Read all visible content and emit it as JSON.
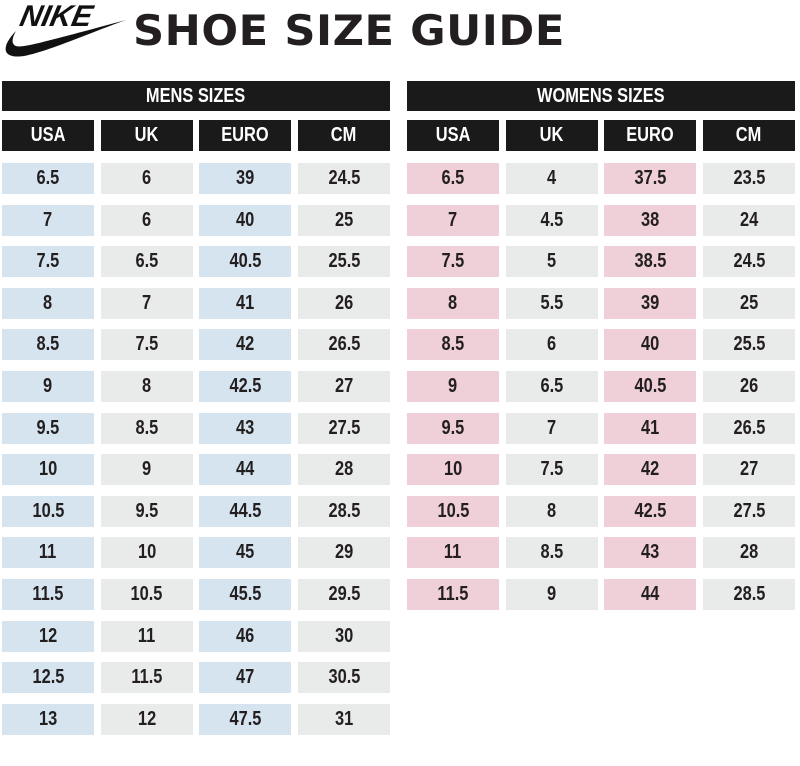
{
  "header": {
    "brand": "NIKE",
    "logo_icon": "nike-swoosh-logo",
    "title": "SHOE SIZE GUIDE"
  },
  "colors": {
    "header_bg": "#1a1a1a",
    "mens_accent": "#d5e4ef",
    "womens_accent": "#efcfd8",
    "plain_cell": "#e9eaea",
    "text": "#231f20"
  },
  "mens": {
    "title": "MENS SIZES",
    "columns": [
      "USA",
      "UK",
      "EURO",
      "CM"
    ],
    "rows": [
      [
        "6.5",
        "6",
        "39",
        "24.5"
      ],
      [
        "7",
        "6",
        "40",
        "25"
      ],
      [
        "7.5",
        "6.5",
        "40.5",
        "25.5"
      ],
      [
        "8",
        "7",
        "41",
        "26"
      ],
      [
        "8.5",
        "7.5",
        "42",
        "26.5"
      ],
      [
        "9",
        "8",
        "42.5",
        "27"
      ],
      [
        "9.5",
        "8.5",
        "43",
        "27.5"
      ],
      [
        "10",
        "9",
        "44",
        "28"
      ],
      [
        "10.5",
        "9.5",
        "44.5",
        "28.5"
      ],
      [
        "11",
        "10",
        "45",
        "29"
      ],
      [
        "11.5",
        "10.5",
        "45.5",
        "29.5"
      ],
      [
        "12",
        "11",
        "46",
        "30"
      ],
      [
        "12.5",
        "11.5",
        "47",
        "30.5"
      ],
      [
        "13",
        "12",
        "47.5",
        "31"
      ]
    ]
  },
  "womens": {
    "title": "WOMENS SIZES",
    "columns": [
      "USA",
      "UK",
      "EURO",
      "CM"
    ],
    "rows": [
      [
        "6.5",
        "4",
        "37.5",
        "23.5"
      ],
      [
        "7",
        "4.5",
        "38",
        "24"
      ],
      [
        "7.5",
        "5",
        "38.5",
        "24.5"
      ],
      [
        "8",
        "5.5",
        "39",
        "25"
      ],
      [
        "8.5",
        "6",
        "40",
        "25.5"
      ],
      [
        "9",
        "6.5",
        "40.5",
        "26"
      ],
      [
        "9.5",
        "7",
        "41",
        "26.5"
      ],
      [
        "10",
        "7.5",
        "42",
        "27"
      ],
      [
        "10.5",
        "8",
        "42.5",
        "27.5"
      ],
      [
        "11",
        "8.5",
        "43",
        "28"
      ],
      [
        "11.5",
        "9",
        "44",
        "28.5"
      ]
    ]
  }
}
